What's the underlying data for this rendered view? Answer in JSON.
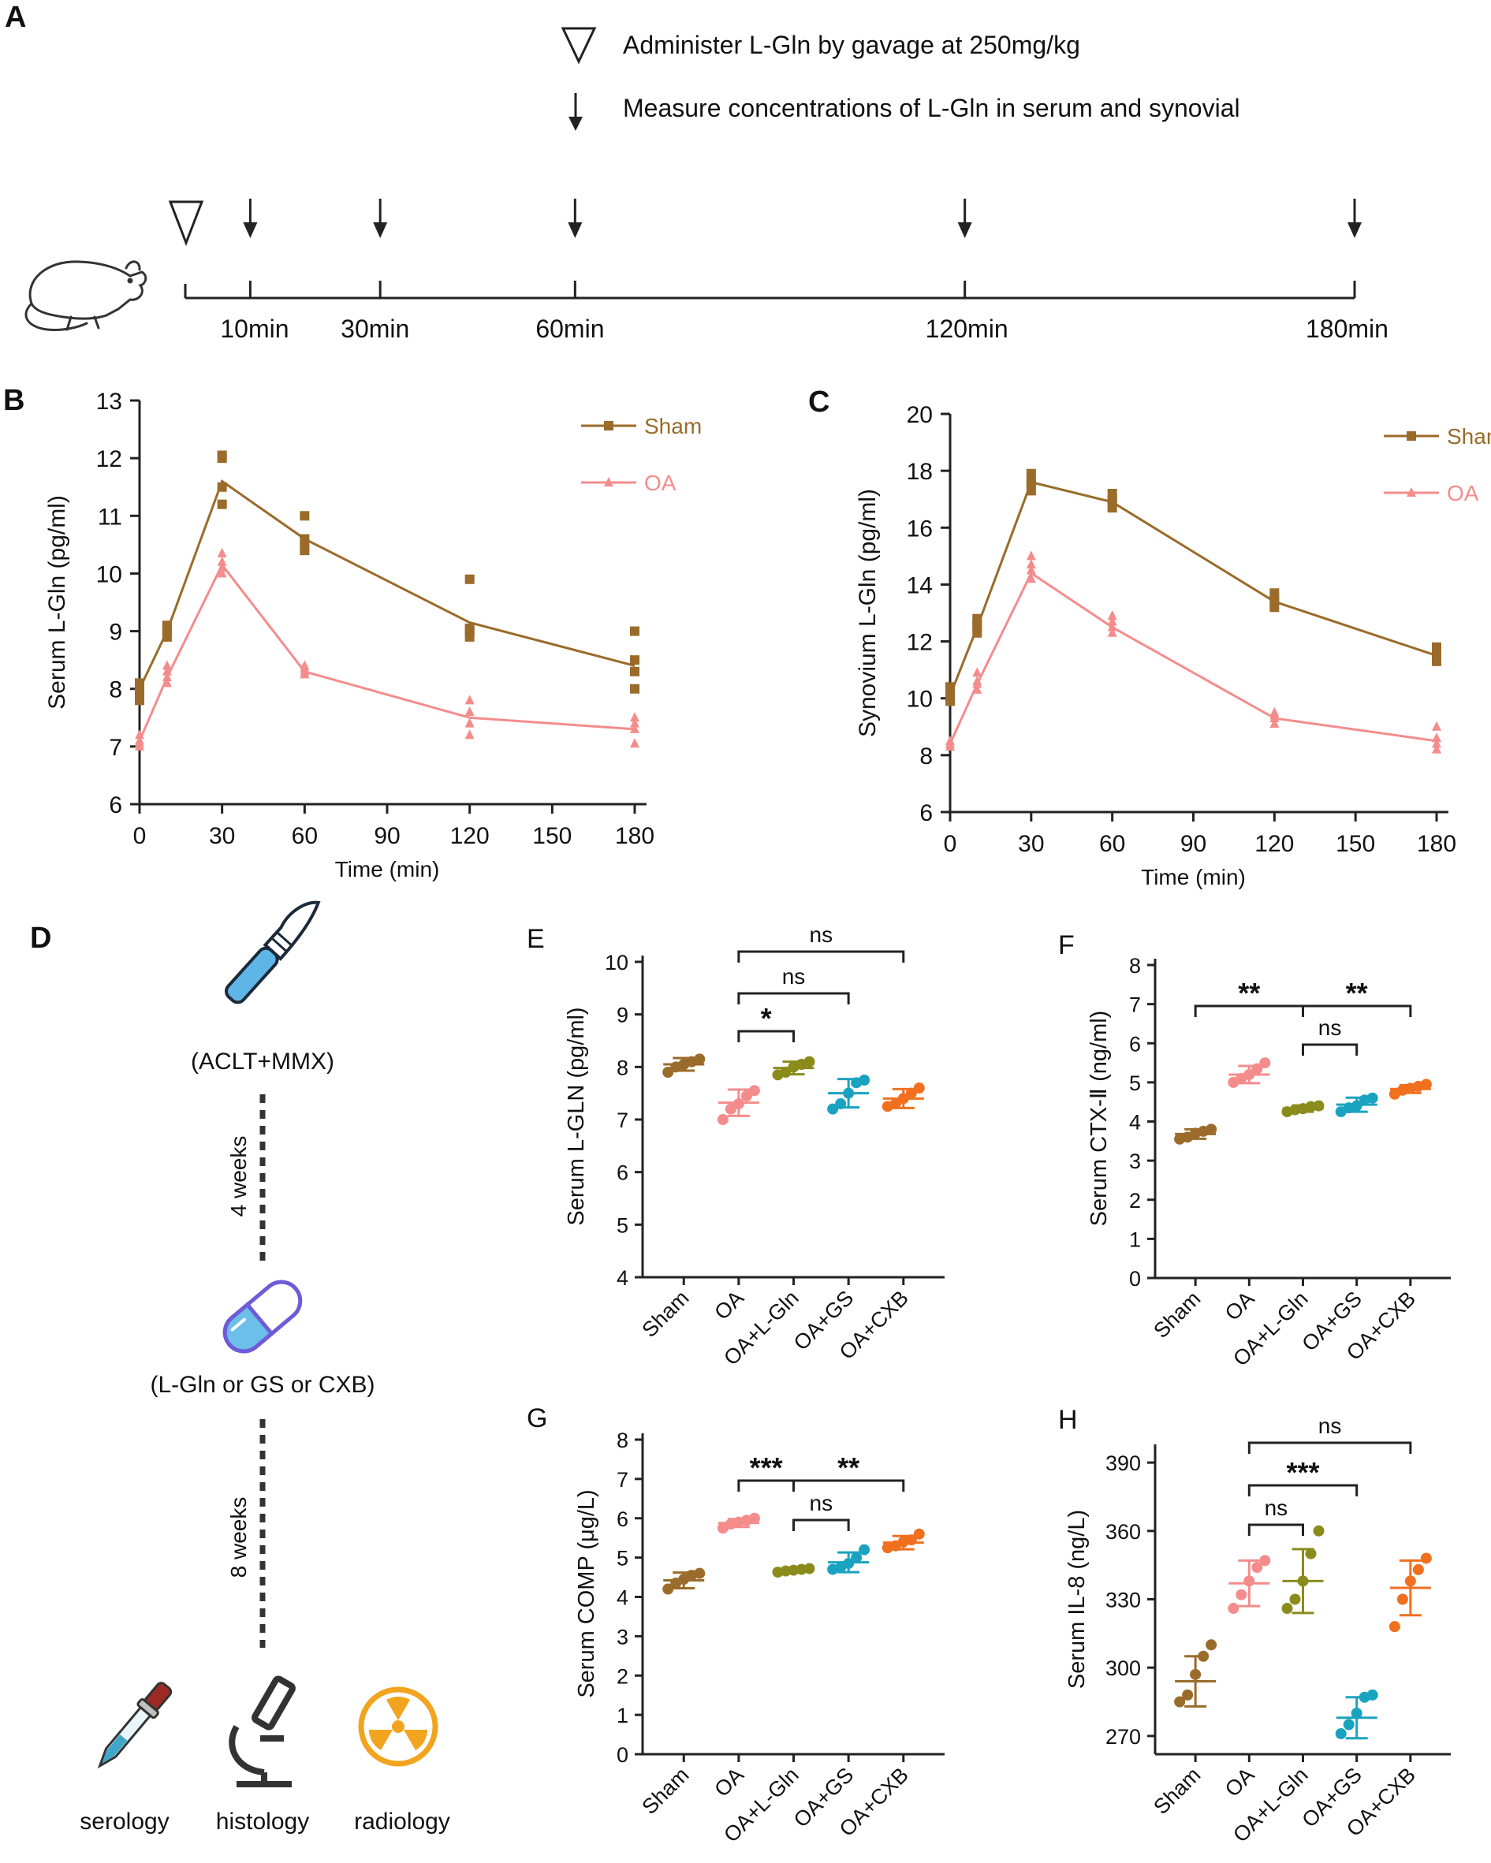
{
  "colors": {
    "sham": "#9a6b2a",
    "oa": "#f48c8c",
    "lgln": "#8b8b1c",
    "gs": "#1aa3c0",
    "cxb": "#f07020",
    "axis": "#222222",
    "scalpel": "#5fb6e6",
    "pill": "#6f5bd8",
    "radio": "#f2a41f",
    "pipette": "#9c2a25"
  },
  "panel_a": {
    "label": "A",
    "legend_triangle": "Administer L-Gln by gavage at 250mg/kg",
    "legend_arrow": "Measure concentrations of L-Gln in serum and synovial",
    "timepoints": [
      "10min",
      "30min",
      "60min",
      "120min",
      "180min"
    ],
    "timepoint_values": [
      10,
      30,
      60,
      120,
      180
    ],
    "icons": [
      "triangle-icon",
      "arrow-down-icon",
      "mouse-icon"
    ]
  },
  "panel_d": {
    "label": "D",
    "surgery": "(ACLT+MMX)",
    "period1": "4 weeks",
    "treatment": "(L-Gln or GS or CXB)",
    "period2": "8 weeks",
    "outcomes": [
      "serology",
      "histology",
      "radiology"
    ]
  },
  "chart_data": [
    {
      "id": "B",
      "label": "B",
      "type": "line",
      "ylabel": "Serum L-Gln (pg/ml)",
      "xlabel": "Time (min)",
      "xlim": [
        0,
        180
      ],
      "ylim": [
        6,
        13
      ],
      "xticks": [
        0,
        30,
        60,
        90,
        120,
        150,
        180
      ],
      "yticks": [
        6,
        7,
        8,
        9,
        10,
        11,
        12,
        13
      ],
      "x": [
        0,
        10,
        30,
        60,
        120,
        180
      ],
      "series": [
        {
          "name": "Sham",
          "marker": "square",
          "mean": [
            8.0,
            9.0,
            11.6,
            10.6,
            9.15,
            8.4
          ],
          "points": [
            [
              7.8,
              7.9,
              8.0,
              8.1
            ],
            [
              8.9,
              9.0,
              9.05,
              9.1
            ],
            [
              11.2,
              11.5,
              12.0,
              12.05
            ],
            [
              10.4,
              10.5,
              10.6,
              11.0
            ],
            [
              8.9,
              9.0,
              9.05,
              9.9
            ],
            [
              8.0,
              8.3,
              8.5,
              9.0
            ]
          ]
        },
        {
          "name": "OA",
          "marker": "triangle",
          "mean": [
            7.1,
            8.2,
            10.15,
            8.3,
            7.5,
            7.3
          ],
          "points": [
            [
              7.0,
              7.05,
              7.1,
              7.2
            ],
            [
              8.1,
              8.2,
              8.3,
              8.4
            ],
            [
              10.0,
              10.1,
              10.2,
              10.35
            ],
            [
              8.25,
              8.3,
              8.35,
              8.4
            ],
            [
              7.2,
              7.4,
              7.6,
              7.8
            ],
            [
              7.05,
              7.3,
              7.4,
              7.5
            ]
          ]
        }
      ]
    },
    {
      "id": "C",
      "label": "C",
      "type": "line",
      "ylabel": "Synovium L-Gln (pg/ml)",
      "xlabel": "Time (min)",
      "xlim": [
        0,
        180
      ],
      "ylim": [
        6,
        20
      ],
      "xticks": [
        0,
        30,
        60,
        90,
        120,
        150,
        180
      ],
      "yticks": [
        6,
        8,
        10,
        12,
        14,
        16,
        18,
        20
      ],
      "x": [
        0,
        10,
        30,
        60,
        120,
        180
      ],
      "series": [
        {
          "name": "Sham",
          "marker": "square",
          "mean": [
            10.1,
            12.5,
            17.6,
            16.9,
            13.4,
            11.5
          ],
          "points": [
            [
              9.9,
              10.0,
              10.2,
              10.4
            ],
            [
              12.3,
              12.5,
              12.6,
              12.8
            ],
            [
              17.3,
              17.5,
              17.7,
              17.9
            ],
            [
              16.7,
              16.9,
              17.0,
              17.2
            ],
            [
              13.2,
              13.4,
              13.5,
              13.7
            ],
            [
              11.3,
              11.4,
              11.6,
              11.8
            ]
          ]
        },
        {
          "name": "OA",
          "marker": "triangle",
          "mean": [
            8.4,
            10.5,
            14.4,
            12.5,
            9.3,
            8.5
          ],
          "points": [
            [
              8.3,
              8.4,
              8.5,
              8.4
            ],
            [
              10.3,
              10.5,
              10.6,
              10.9
            ],
            [
              14.2,
              14.5,
              14.7,
              15.0
            ],
            [
              12.3,
              12.5,
              12.7,
              12.9
            ],
            [
              9.1,
              9.3,
              9.4,
              9.5
            ],
            [
              8.2,
              8.4,
              8.6,
              9.0
            ]
          ]
        }
      ]
    },
    {
      "id": "E",
      "label": "E",
      "type": "scatter",
      "ylabel": "Serum L-GLN (pg/ml)",
      "categories": [
        "Sham",
        "OA",
        "OA+L-Gln",
        "OA+GS",
        "OA+CXB"
      ],
      "ylim": [
        4,
        10
      ],
      "yticks": [
        4,
        5,
        6,
        7,
        8,
        9,
        10
      ],
      "ytick_labels": [
        "4",
        "5",
        "6",
        "7",
        "8",
        "9",
        "10"
      ],
      "groups": [
        {
          "mean": 8.05,
          "sd": 0.12,
          "values": [
            7.9,
            8.0,
            8.05,
            8.1,
            8.15
          ]
        },
        {
          "mean": 7.32,
          "sd": 0.25,
          "values": [
            7.0,
            7.2,
            7.3,
            7.45,
            7.55
          ]
        },
        {
          "mean": 7.98,
          "sd": 0.12,
          "values": [
            7.85,
            7.9,
            8.0,
            8.05,
            8.1
          ]
        },
        {
          "mean": 7.5,
          "sd": 0.27,
          "values": [
            7.2,
            7.3,
            7.5,
            7.7,
            7.75
          ]
        },
        {
          "mean": 7.4,
          "sd": 0.18,
          "values": [
            7.25,
            7.3,
            7.4,
            7.5,
            7.6
          ]
        }
      ],
      "comparisons": [
        {
          "a": 1,
          "b": 4,
          "label": "ns"
        },
        {
          "a": 1,
          "b": 3,
          "label": "ns"
        },
        {
          "a": 1,
          "b": 2,
          "label": "*"
        }
      ]
    },
    {
      "id": "F",
      "label": "F",
      "type": "scatter",
      "ylabel": "Serum CTX-Ⅱ (ng/ml)",
      "categories": [
        "Sham",
        "OA",
        "OA+L-Gln",
        "OA+GS",
        "OA+CXB"
      ],
      "ylim": [
        0,
        8
      ],
      "yticks": [
        0,
        1,
        2,
        3,
        4,
        5,
        6,
        7,
        8
      ],
      "ytick_labels": [
        "0",
        "1",
        "2",
        "3",
        "4",
        "5",
        "6",
        "7",
        "8"
      ],
      "groups": [
        {
          "mean": 3.68,
          "sd": 0.12,
          "values": [
            3.55,
            3.6,
            3.7,
            3.75,
            3.8
          ]
        },
        {
          "mean": 5.2,
          "sd": 0.22,
          "values": [
            5.0,
            5.1,
            5.2,
            5.35,
            5.5
          ]
        },
        {
          "mean": 4.33,
          "sd": 0.08,
          "values": [
            4.25,
            4.3,
            4.33,
            4.38,
            4.4
          ]
        },
        {
          "mean": 4.43,
          "sd": 0.18,
          "values": [
            4.25,
            4.35,
            4.4,
            4.55,
            4.6
          ]
        },
        {
          "mean": 4.83,
          "sd": 0.1,
          "values": [
            4.7,
            4.8,
            4.85,
            4.9,
            4.95
          ]
        }
      ],
      "comparisons": [
        {
          "a": 0,
          "b": 2,
          "label": "**"
        },
        {
          "a": 2,
          "b": 4,
          "label": "**"
        },
        {
          "a": 2,
          "b": 3,
          "label": "ns"
        }
      ]
    },
    {
      "id": "G",
      "label": "G",
      "type": "scatter",
      "ylabel": "Serum COMP (μg/L)",
      "categories": [
        "Sham",
        "OA",
        "OA+L-Gln",
        "OA+GS",
        "OA+CXB"
      ],
      "ylim": [
        0,
        8
      ],
      "yticks": [
        0,
        1,
        2,
        3,
        4,
        5,
        6,
        7,
        8
      ],
      "ytick_labels": [
        "0",
        "1",
        "2",
        "3",
        "4",
        "5",
        "6",
        "7",
        "8"
      ],
      "groups": [
        {
          "mean": 4.42,
          "sd": 0.2,
          "values": [
            4.2,
            4.35,
            4.45,
            4.55,
            4.6
          ]
        },
        {
          "mean": 5.88,
          "sd": 0.1,
          "values": [
            5.75,
            5.85,
            5.9,
            5.95,
            6.0
          ]
        },
        {
          "mean": 4.68,
          "sd": 0.05,
          "values": [
            4.63,
            4.66,
            4.68,
            4.7,
            4.72
          ]
        },
        {
          "mean": 4.88,
          "sd": 0.25,
          "values": [
            4.7,
            4.75,
            4.85,
            5.0,
            5.2
          ]
        },
        {
          "mean": 5.38,
          "sd": 0.17,
          "values": [
            5.25,
            5.3,
            5.4,
            5.45,
            5.6
          ]
        }
      ],
      "comparisons": [
        {
          "a": 1,
          "b": 2,
          "label": "***"
        },
        {
          "a": 2,
          "b": 4,
          "label": "**"
        },
        {
          "a": 2,
          "b": 3,
          "label": "ns"
        }
      ]
    },
    {
      "id": "H",
      "label": "H",
      "type": "scatter",
      "ylabel": "Serum IL-8 (ng/L)",
      "categories": [
        "Sham",
        "OA",
        "OA+L-Gln",
        "OA+GS",
        "OA+CXB"
      ],
      "ylim": [
        262,
        398
      ],
      "yticks": [
        270,
        300,
        330,
        360,
        390
      ],
      "ytick_labels": [
        "270",
        "300",
        "330",
        "360",
        "390"
      ],
      "groups": [
        {
          "mean": 294,
          "sd": 11,
          "values": [
            285,
            288,
            297,
            305,
            310
          ]
        },
        {
          "mean": 337,
          "sd": 10,
          "values": [
            326,
            332,
            338,
            344,
            347
          ]
        },
        {
          "mean": 338,
          "sd": 14,
          "values": [
            326,
            330,
            338,
            350,
            360
          ]
        },
        {
          "mean": 278,
          "sd": 9,
          "values": [
            271,
            275,
            280,
            287,
            288
          ]
        },
        {
          "mean": 335,
          "sd": 12,
          "values": [
            318,
            330,
            338,
            343,
            348
          ]
        }
      ],
      "comparisons": [
        {
          "a": 1,
          "b": 4,
          "label": "ns"
        },
        {
          "a": 1,
          "b": 3,
          "label": "***"
        },
        {
          "a": 1,
          "b": 2,
          "label": "ns"
        }
      ]
    }
  ]
}
